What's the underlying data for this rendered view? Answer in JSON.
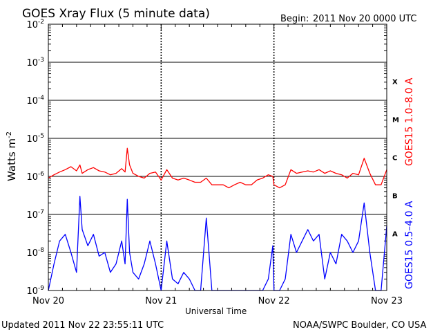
{
  "chart_data": {
    "type": "line",
    "title": "GOES Xray Flux (5 minute data)",
    "begin_label": "Begin:",
    "begin_value": "2011 Nov 20 0000 UTC",
    "xlabel": "Universal Time",
    "ylabel": "Watts m",
    "ylabel_sup": "-2",
    "x_tick_labels": [
      "Nov 20",
      "Nov 21",
      "Nov 22",
      "Nov 23"
    ],
    "xlim_days": [
      0,
      3
    ],
    "y_scale": "log",
    "ylim": [
      1e-09,
      0.01
    ],
    "y_ticks": [
      {
        "mant": "10",
        "exp": "-9"
      },
      {
        "mant": "10",
        "exp": "-8"
      },
      {
        "mant": "10",
        "exp": "-7"
      },
      {
        "mant": "10",
        "exp": "-6"
      },
      {
        "mant": "10",
        "exp": "-5"
      },
      {
        "mant": "10",
        "exp": "-4"
      },
      {
        "mant": "10",
        "exp": "-3"
      },
      {
        "mant": "10",
        "exp": "-2"
      }
    ],
    "flare_classes": [
      {
        "label": "X",
        "value": 0.0001
      },
      {
        "label": "M",
        "value": 1e-05
      },
      {
        "label": "C",
        "value": 1e-06
      },
      {
        "label": "B",
        "value": 1e-07
      },
      {
        "label": "A",
        "value": 1e-08
      }
    ],
    "grid": true,
    "series": [
      {
        "name": "GOES15 1.0–8.0 A",
        "color": "#ff0000",
        "x": [
          0,
          0.05,
          0.1,
          0.15,
          0.2,
          0.25,
          0.28,
          0.3,
          0.35,
          0.4,
          0.45,
          0.5,
          0.55,
          0.6,
          0.65,
          0.68,
          0.7,
          0.72,
          0.75,
          0.8,
          0.85,
          0.9,
          0.95,
          1.0,
          1.05,
          1.1,
          1.15,
          1.2,
          1.25,
          1.3,
          1.35,
          1.4,
          1.45,
          1.5,
          1.55,
          1.6,
          1.65,
          1.7,
          1.75,
          1.8,
          1.85,
          1.9,
          1.95,
          1.99,
          2.0,
          2.05,
          2.1,
          2.15,
          2.2,
          2.25,
          2.3,
          2.35,
          2.4,
          2.45,
          2.5,
          2.55,
          2.6,
          2.65,
          2.7,
          2.75,
          2.8,
          2.85,
          2.9,
          2.95,
          3.0
        ],
        "values": [
          9e-07,
          1.1e-06,
          1.3e-06,
          1.5e-06,
          1.8e-06,
          1.4e-06,
          2e-06,
          1.2e-06,
          1.5e-06,
          1.7e-06,
          1.4e-06,
          1.3e-06,
          1.1e-06,
          1.2e-06,
          1.6e-06,
          1.3e-06,
          5.5e-06,
          2e-06,
          1.2e-06,
          1e-06,
          9e-07,
          1.2e-06,
          1.3e-06,
          8e-07,
          1.5e-06,
          9e-07,
          8e-07,
          9e-07,
          8e-07,
          7e-07,
          7e-07,
          9e-07,
          6e-07,
          6e-07,
          6e-07,
          5e-07,
          6e-07,
          7e-07,
          6e-07,
          6e-07,
          8e-07,
          9e-07,
          1.1e-06,
          1e-06,
          6e-07,
          5e-07,
          6e-07,
          1.5e-06,
          1.2e-06,
          1.3e-06,
          1.4e-06,
          1.3e-06,
          1.5e-06,
          1.2e-06,
          1.4e-06,
          1.2e-06,
          1.1e-06,
          9e-07,
          1.2e-06,
          1.1e-06,
          3e-06,
          1.2e-06,
          6e-07,
          6e-07,
          1.5e-06
        ]
      },
      {
        "name": "GOES15 0.5–4.0 A",
        "color": "#0000ff",
        "x": [
          0,
          0.05,
          0.1,
          0.15,
          0.2,
          0.25,
          0.28,
          0.3,
          0.35,
          0.4,
          0.45,
          0.5,
          0.55,
          0.6,
          0.65,
          0.68,
          0.7,
          0.72,
          0.75,
          0.8,
          0.85,
          0.9,
          0.95,
          1.0,
          1.05,
          1.1,
          1.15,
          1.2,
          1.25,
          1.3,
          1.35,
          1.4,
          1.45,
          1.5,
          1.55,
          1.6,
          1.65,
          1.7,
          1.75,
          1.8,
          1.85,
          1.9,
          1.95,
          1.99,
          2.0,
          2.05,
          2.1,
          2.15,
          2.2,
          2.25,
          2.3,
          2.35,
          2.4,
          2.45,
          2.5,
          2.55,
          2.6,
          2.65,
          2.7,
          2.75,
          2.8,
          2.85,
          2.9,
          2.95,
          3.0
        ],
        "values": [
          1e-09,
          5e-09,
          2e-08,
          3e-08,
          1e-08,
          3e-09,
          3e-07,
          4e-08,
          1.5e-08,
          3e-08,
          8e-09,
          1e-08,
          3e-09,
          5e-09,
          2e-08,
          5e-09,
          2.5e-07,
          1e-08,
          3e-09,
          2e-09,
          5e-09,
          2e-08,
          5e-09,
          1e-09,
          2e-08,
          2e-09,
          1.5e-09,
          3e-09,
          2e-09,
          1e-09,
          1e-09,
          8e-08,
          1e-09,
          1e-09,
          1e-09,
          1e-09,
          1e-09,
          1e-09,
          1e-09,
          1e-09,
          1e-09,
          1e-09,
          2e-09,
          1.5e-08,
          1e-09,
          1e-09,
          2e-09,
          3e-08,
          1e-08,
          2e-08,
          4e-08,
          2e-08,
          3e-08,
          2e-09,
          1e-08,
          5e-09,
          3e-08,
          2e-08,
          1e-08,
          2e-08,
          2e-07,
          1e-08,
          1e-09,
          1e-09,
          5e-08
        ]
      }
    ]
  },
  "footer": {
    "updated": "Updated 2011 Nov 22 23:55:11 UTC",
    "credit": "NOAA/SWPC Boulder, CO USA"
  }
}
